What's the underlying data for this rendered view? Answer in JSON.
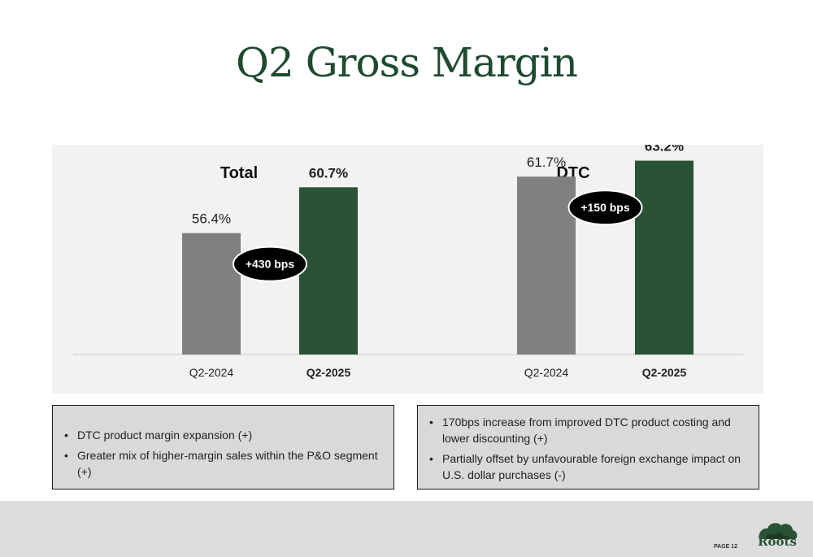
{
  "page": {
    "title": "Q2 Gross Margin",
    "page_label": "PAGE 12",
    "brand": "Roots"
  },
  "colors": {
    "prior": "#808080",
    "current": "#2a5234",
    "title": "#1f4a30",
    "badge": "#000000"
  },
  "chart_data": [
    {
      "type": "bar",
      "title": "Total",
      "categories": [
        "Q2-2024",
        "Q2-2025"
      ],
      "values": [
        56.4,
        60.7
      ],
      "value_labels": [
        "56.4%",
        "60.7%"
      ],
      "change_label": "+430 bps",
      "ylim": [
        45,
        65
      ]
    },
    {
      "type": "bar",
      "title": "DTC",
      "categories": [
        "Q2-2024",
        "Q2-2025"
      ],
      "values": [
        61.7,
        63.2
      ],
      "value_labels": [
        "61.7%",
        "63.2%"
      ],
      "change_label": "+150 bps",
      "ylim": [
        45,
        65
      ]
    }
  ],
  "notes": {
    "left": [
      "DTC product margin expansion (+)",
      "Greater mix of higher-margin sales within the P&O segment (+)"
    ],
    "right": [
      "170bps increase from improved DTC product costing and lower discounting (+)",
      "Partially offset by unfavourable foreign exchange impact on U.S. dollar purchases (-)"
    ]
  }
}
